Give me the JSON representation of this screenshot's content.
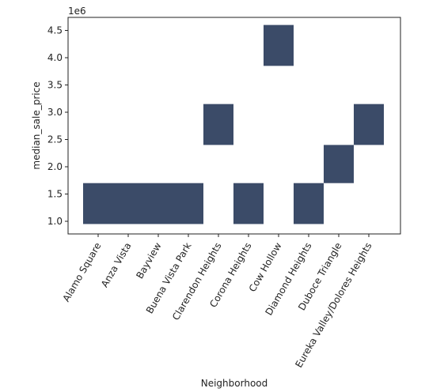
{
  "chart_data": {
    "type": "heatmap",
    "xlabel": "Neighborhood",
    "ylabel": "median_sale_price",
    "y_offset_label": "1e6",
    "categories": [
      "Alamo Square",
      "Anza Vista",
      "Bayview",
      "Buena Vista Park",
      "Clarendon Heights",
      "Corona Heights",
      "Cow Hollow",
      "Diamond Heights",
      "Duboce Triangle",
      "Eureka Valley/Dolores Heights"
    ],
    "y_bins": [
      [
        0.95,
        1.7
      ],
      [
        1.7,
        2.4
      ],
      [
        2.4,
        3.15
      ],
      [
        3.15,
        3.85
      ],
      [
        3.85,
        4.6
      ]
    ],
    "cells": [
      {
        "category": "Alamo Square",
        "bin": [
          0.95,
          1.7
        ]
      },
      {
        "category": "Anza Vista",
        "bin": [
          0.95,
          1.7
        ]
      },
      {
        "category": "Bayview",
        "bin": [
          0.95,
          1.7
        ]
      },
      {
        "category": "Buena Vista Park",
        "bin": [
          0.95,
          1.7
        ]
      },
      {
        "category": "Clarendon Heights",
        "bin": [
          2.4,
          3.15
        ]
      },
      {
        "category": "Corona Heights",
        "bin": [
          0.95,
          1.7
        ]
      },
      {
        "category": "Cow Hollow",
        "bin": [
          3.85,
          4.6
        ]
      },
      {
        "category": "Diamond Heights",
        "bin": [
          0.95,
          1.7
        ]
      },
      {
        "category": "Duboce Triangle",
        "bin": [
          1.7,
          2.4
        ]
      },
      {
        "category": "Eureka Valley/Dolores Heights",
        "bin": [
          2.4,
          3.15
        ]
      }
    ],
    "yticks": [
      1.0,
      1.5,
      2.0,
      2.5,
      3.0,
      3.5,
      4.0,
      4.5
    ],
    "ytick_labels": [
      "1.0",
      "1.5",
      "2.0",
      "2.5",
      "3.0",
      "3.5",
      "4.0",
      "4.5"
    ],
    "ylim": [
      0.8,
      4.75
    ],
    "grid": false,
    "cell_color": "#3b4b68"
  }
}
